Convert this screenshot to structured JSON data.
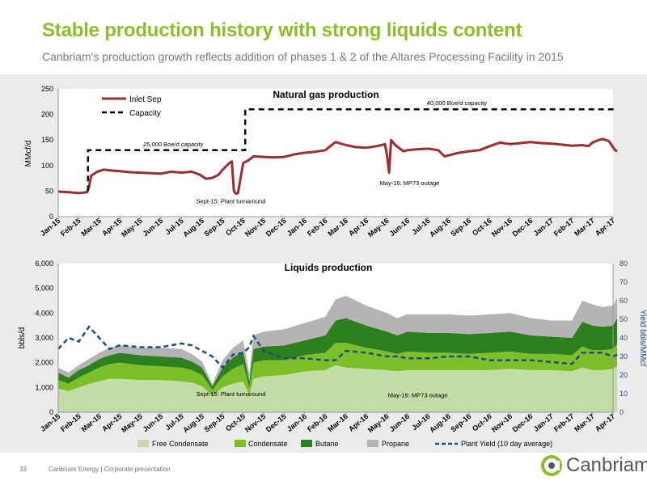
{
  "header": {
    "title": "Stable production history with strong liquids content",
    "subtitle": "Canbriam's production growth reflects addition of phases 1 & 2 of the Altares Processing Facility in 2015"
  },
  "footer": {
    "page_number": "33",
    "text": "Canbriam Energy  |  Corporate presentation",
    "logo_text": "Canbriam"
  },
  "colors": {
    "accent_green": "#8dbd2b",
    "inlet_sep": "#9b2f2f",
    "capacity": "#000000",
    "free_condensate": "#c3dba4",
    "condensate": "#7bbf2a",
    "butane": "#2e7f1d",
    "propane": "#b4b4b4",
    "plant_yield": "#1f4e79"
  },
  "chart_data": [
    {
      "type": "line",
      "title": "Natural gas production",
      "ylabel": "MMcf/d",
      "ylim": [
        0,
        250
      ],
      "yticks": [
        0,
        50,
        100,
        150,
        200,
        250
      ],
      "x_tick_labels": [
        "Jan-15",
        "Feb-15",
        "Mar-15",
        "Apr-15",
        "May-15",
        "Jun-15",
        "Jul-15",
        "Aug-15",
        "Sep-15",
        "Oct-15",
        "Nov-15",
        "Dec-15",
        "Jan-16",
        "Feb-16",
        "Mar-16",
        "Apr-16",
        "May-16",
        "Jun-16",
        "Jul-16",
        "Aug-16",
        "Sep-16",
        "Oct-16",
        "Nov-16",
        "Dec-16",
        "Jan-17",
        "Feb-17",
        "Mar-17",
        "Apr-17"
      ],
      "legend": [
        "Inlet Sep",
        "Capacity"
      ],
      "legend_position": "top-left",
      "series": [
        {
          "name": "Inlet Sep",
          "x": [
            0,
            0.5,
            1,
            1.4,
            1.5,
            1.6,
            1.9,
            2.2,
            2.7,
            3,
            3.5,
            4,
            4.5,
            5,
            5.5,
            6,
            6.5,
            6.9,
            7.2,
            7.5,
            7.8,
            8,
            8.3,
            8.45,
            8.55,
            8.65,
            8.75,
            8.85,
            9,
            9.25,
            9.5,
            10,
            10.5,
            11,
            11.5,
            12,
            12.5,
            13,
            13.3,
            13.5,
            14,
            14.5,
            15,
            15.5,
            15.9,
            16,
            16.1,
            16.2,
            16.4,
            16.8,
            17,
            17.5,
            18,
            18.5,
            18.8,
            19,
            19.5,
            20,
            20.5,
            21,
            21.5,
            22,
            22.5,
            23,
            23.5,
            24,
            24.5,
            25,
            25.5,
            25.8,
            26,
            26.3,
            26.5,
            26.8,
            27,
            27.1,
            27.2
          ],
          "values": [
            49,
            48,
            46,
            48,
            58,
            80,
            88,
            92,
            90,
            89,
            87,
            86,
            85,
            84,
            88,
            86,
            88,
            82,
            74,
            76,
            82,
            92,
            104,
            108,
            50,
            45,
            46,
            70,
            105,
            110,
            118,
            117,
            116,
            117,
            122,
            125,
            127,
            130,
            140,
            146,
            140,
            136,
            135,
            138,
            142,
            120,
            86,
            150,
            140,
            128,
            130,
            132,
            133,
            130,
            118,
            120,
            125,
            128,
            130,
            138,
            145,
            142,
            144,
            146,
            144,
            143,
            141,
            139,
            140,
            138,
            145,
            150,
            152,
            148,
            136,
            130,
            128
          ]
        },
        {
          "name": "Capacity",
          "step_x": [
            1.45,
            1.45,
            9.1,
            9.1,
            27.2
          ],
          "step_values": [
            50,
            130,
            130,
            210,
            210
          ]
        }
      ],
      "annotations": [
        {
          "text": "25,000 Boe/d capacity",
          "x": 5.6,
          "y": 138
        },
        {
          "text": "40,000 Boe/d capacity",
          "x": 19.4,
          "y": 218
        },
        {
          "text": "Sept-15: Plant turnaround",
          "x": 8.4,
          "y": 26
        },
        {
          "text": "May-16: MP73 outage",
          "x": 17.1,
          "y": 62
        }
      ]
    },
    {
      "type": "area",
      "title": "Liquids production",
      "ylabel": "bbls/d",
      "y2label": "Yield bbls/MMcf",
      "ylim": [
        0,
        6000
      ],
      "y2lim": [
        0,
        80
      ],
      "yticks": [
        0,
        1000,
        2000,
        3000,
        4000,
        5000,
        6000
      ],
      "y2ticks": [
        0,
        10,
        20,
        30,
        40,
        50,
        60,
        70,
        80
      ],
      "x_tick_labels": [
        "Jan-15",
        "Feb-15",
        "Mar-15",
        "Apr-15",
        "May-15",
        "Jun-15",
        "Jul-15",
        "Aug-15",
        "Sep-15",
        "Oct-15",
        "Nov-15",
        "Dec-15",
        "Jan-16",
        "Feb-16",
        "Mar-16",
        "Apr-16",
        "May-16",
        "Jun-16",
        "Jul-16",
        "Aug-16",
        "Sep-16",
        "Oct-16",
        "Nov-16",
        "Dec-16",
        "Jan-17",
        "Feb-17",
        "Mar-17",
        "Apr-17"
      ],
      "legend": [
        "Free Condensate",
        "Condensate",
        "Butane",
        "Propane",
        "Plant Yield (10 day average)"
      ],
      "legend_position": "bottom",
      "x": [
        0,
        0.5,
        1,
        1.5,
        2,
        2.5,
        3,
        4,
        5,
        6,
        6.5,
        7,
        7.5,
        8,
        8.5,
        9,
        9.3,
        9.5,
        10,
        11,
        12,
        13,
        13.5,
        14,
        15,
        16,
        16.5,
        17,
        18,
        19,
        20,
        21,
        22,
        23,
        24,
        25,
        25.5,
        26,
        26.5,
        27,
        27.2
      ],
      "series": [
        {
          "name": "Free Condensate",
          "values": [
            950,
            850,
            1000,
            1150,
            1250,
            1350,
            1350,
            1300,
            1300,
            1250,
            1200,
            1050,
            650,
            1000,
            1150,
            1250,
            700,
            1350,
            1450,
            1500,
            1650,
            1700,
            1900,
            1800,
            1750,
            1700,
            1650,
            1700,
            1700,
            1700,
            1700,
            1700,
            1750,
            1700,
            1700,
            1650,
            1800,
            1700,
            1700,
            1750,
            1850
          ]
        },
        {
          "name": "Condensate",
          "values": [
            350,
            300,
            400,
            450,
            550,
            600,
            650,
            600,
            550,
            550,
            500,
            450,
            250,
            450,
            600,
            700,
            300,
            650,
            650,
            600,
            650,
            700,
            900,
            1000,
            850,
            750,
            700,
            750,
            700,
            700,
            650,
            700,
            700,
            650,
            650,
            650,
            850,
            800,
            800,
            800,
            900
          ]
        },
        {
          "name": "Butane",
          "values": [
            300,
            250,
            300,
            300,
            350,
            350,
            400,
            400,
            400,
            400,
            350,
            300,
            150,
            350,
            450,
            500,
            250,
            550,
            550,
            600,
            600,
            700,
            900,
            1000,
            900,
            800,
            750,
            800,
            800,
            800,
            800,
            800,
            800,
            750,
            700,
            700,
            1000,
            1000,
            950,
            950,
            1050
          ]
        },
        {
          "name": "Propane",
          "values": [
            200,
            200,
            200,
            250,
            250,
            300,
            300,
            300,
            350,
            350,
            300,
            250,
            100,
            300,
            400,
            450,
            300,
            550,
            600,
            650,
            700,
            750,
            850,
            900,
            800,
            750,
            700,
            700,
            750,
            750,
            750,
            750,
            750,
            700,
            650,
            700,
            850,
            850,
            800,
            800,
            800
          ]
        },
        {
          "name": "Plant Yield (10 day average)",
          "axis": "y2",
          "values": [
            34,
            40,
            38,
            46,
            40,
            34,
            36,
            35,
            35,
            37,
            36,
            33,
            30,
            24,
            31,
            32,
            35,
            41,
            33,
            29,
            29,
            28,
            28,
            33,
            32,
            30,
            30,
            29,
            29,
            30,
            30,
            28,
            28,
            28,
            27,
            26,
            32,
            32,
            32,
            30,
            31
          ]
        }
      ],
      "annotations": [
        {
          "text": "Sept-15: Plant turnaround",
          "x": 8.4,
          "y": 650
        },
        {
          "text": "May-16: MP73 outage",
          "x": 17.5,
          "y": 600
        }
      ]
    }
  ]
}
